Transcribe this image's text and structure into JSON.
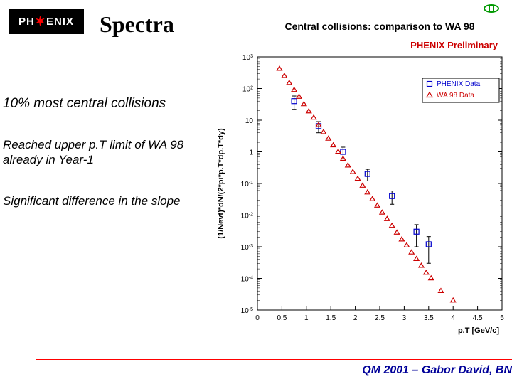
{
  "logo": {
    "prefix": "PH",
    "star": "✶",
    "suffix": "ENIX"
  },
  "title": "Spectra",
  "bodyText": {
    "line1": "10% most central collisions",
    "line2": "Reached upper p.T limit of WA 98 already in Year-1",
    "line3": "Significant difference in the slope"
  },
  "footer": "QM 2001 – Gabor David, BN",
  "chart": {
    "type": "scatter-semilogy",
    "title": "Central collisions: comparison to WA 98",
    "title_fontsize": 14,
    "title_bold": true,
    "annotation": "PHENIX Preliminary",
    "annotation_color": "#cc0000",
    "annotation_fontsize": 13,
    "xlabel": "p.T [GeV/c]",
    "ylabel": "(1/Nevt)*dN/(2*pi*p.T*dp.T*dy)",
    "label_fontsize": 11,
    "xlim": [
      0,
      5
    ],
    "xtick_step": 0.5,
    "ylim": [
      1e-05,
      1000.0
    ],
    "yticks": [
      1e-05,
      0.0001,
      0.001,
      0.01,
      0.1,
      1,
      10,
      100,
      1000
    ],
    "grid": false,
    "axis_color": "#000000",
    "tick_color": "#000000",
    "background_color": "#ffffff",
    "legend": {
      "position": "top-right-inset",
      "box_border": "#000000",
      "entries": [
        {
          "label": "PHENIX Data",
          "marker": "square-open",
          "color": "#0000cc"
        },
        {
          "label": "WA 98 Data",
          "marker": "triangle-open",
          "color": "#cc0000"
        }
      ]
    },
    "series": [
      {
        "name": "PHENIX Data",
        "marker": "square-open",
        "marker_size": 7,
        "color": "#0000cc",
        "errorbar_color": "#000000",
        "points": [
          {
            "x": 0.75,
            "y": 40,
            "ey": 18
          },
          {
            "x": 1.25,
            "y": 6.5,
            "ey": 2.5
          },
          {
            "x": 1.75,
            "y": 1.0,
            "ey": 0.4
          },
          {
            "x": 2.25,
            "y": 0.2,
            "ey": 0.08
          },
          {
            "x": 2.75,
            "y": 0.04,
            "ey": 0.018
          },
          {
            "x": 3.25,
            "y": 0.003,
            "ey": 0.002
          },
          {
            "x": 3.5,
            "y": 0.0012,
            "ey": 0.0009
          }
        ]
      },
      {
        "name": "WA 98 Data",
        "marker": "triangle-open",
        "marker_size": 6,
        "color": "#cc0000",
        "points": [
          {
            "x": 0.45,
            "y": 420
          },
          {
            "x": 0.55,
            "y": 250
          },
          {
            "x": 0.65,
            "y": 150
          },
          {
            "x": 0.75,
            "y": 90
          },
          {
            "x": 0.85,
            "y": 55
          },
          {
            "x": 0.95,
            "y": 32
          },
          {
            "x": 1.05,
            "y": 19
          },
          {
            "x": 1.15,
            "y": 12
          },
          {
            "x": 1.25,
            "y": 7.0
          },
          {
            "x": 1.35,
            "y": 4.2
          },
          {
            "x": 1.45,
            "y": 2.6
          },
          {
            "x": 1.55,
            "y": 1.6
          },
          {
            "x": 1.65,
            "y": 1.0
          },
          {
            "x": 1.75,
            "y": 0.6
          },
          {
            "x": 1.85,
            "y": 0.37
          },
          {
            "x": 1.95,
            "y": 0.23
          },
          {
            "x": 2.05,
            "y": 0.14
          },
          {
            "x": 2.15,
            "y": 0.085
          },
          {
            "x": 2.25,
            "y": 0.052
          },
          {
            "x": 2.35,
            "y": 0.032
          },
          {
            "x": 2.45,
            "y": 0.02
          },
          {
            "x": 2.55,
            "y": 0.012
          },
          {
            "x": 2.65,
            "y": 0.0075
          },
          {
            "x": 2.75,
            "y": 0.0046
          },
          {
            "x": 2.85,
            "y": 0.0028
          },
          {
            "x": 2.95,
            "y": 0.0017
          },
          {
            "x": 3.05,
            "y": 0.0011
          },
          {
            "x": 3.15,
            "y": 0.00066
          },
          {
            "x": 3.25,
            "y": 0.00041
          },
          {
            "x": 3.35,
            "y": 0.00025
          },
          {
            "x": 3.45,
            "y": 0.00015
          },
          {
            "x": 3.55,
            "y": 0.0001
          },
          {
            "x": 3.75,
            "y": 4e-05
          },
          {
            "x": 4.0,
            "y": 2e-05
          }
        ]
      }
    ]
  }
}
